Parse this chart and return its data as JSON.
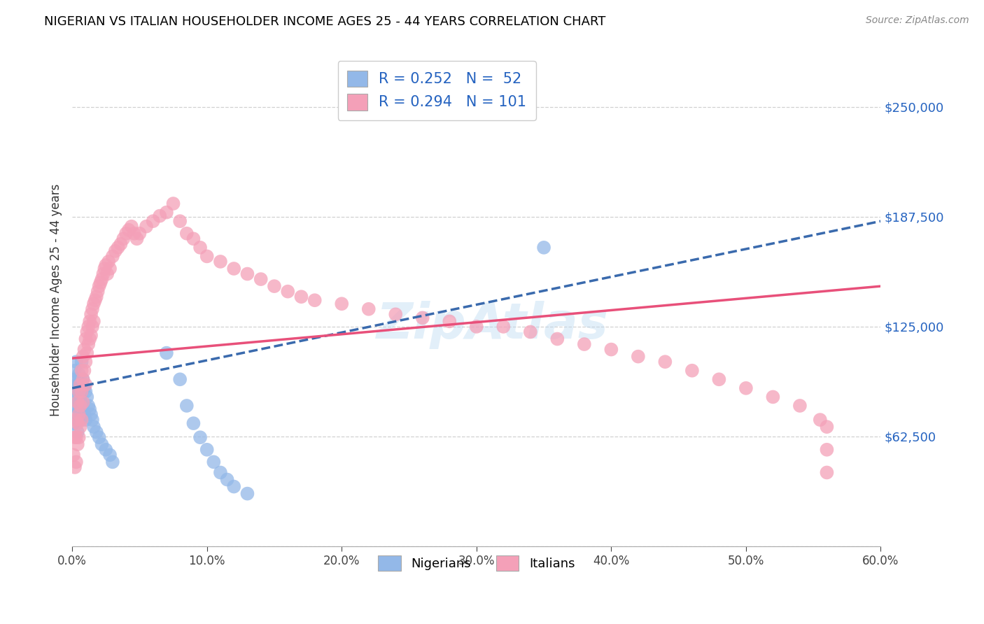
{
  "title": "NIGERIAN VS ITALIAN HOUSEHOLDER INCOME AGES 25 - 44 YEARS CORRELATION CHART",
  "source": "Source: ZipAtlas.com",
  "ylabel": "Householder Income Ages 25 - 44 years",
  "xlim": [
    0.0,
    0.6
  ],
  "ylim": [
    0,
    280000
  ],
  "yticks": [
    0,
    62500,
    125000,
    187500,
    250000
  ],
  "ytick_labels": [
    "",
    "$62,500",
    "$125,000",
    "$187,500",
    "$250,000"
  ],
  "xtick_labels": [
    "0.0%",
    "10.0%",
    "20.0%",
    "30.0%",
    "40.0%",
    "50.0%",
    "60.0%"
  ],
  "xticks": [
    0.0,
    0.1,
    0.2,
    0.3,
    0.4,
    0.5,
    0.6
  ],
  "nigerian_color": "#93b8e8",
  "italian_color": "#f4a0b8",
  "nigerian_R": 0.252,
  "nigerian_N": 52,
  "italian_R": 0.294,
  "italian_N": 101,
  "nigerian_line_color": "#3a6aad",
  "italian_line_color": "#e8507a",
  "nigerian_scatter_x": [
    0.001,
    0.001,
    0.001,
    0.002,
    0.002,
    0.002,
    0.003,
    0.003,
    0.003,
    0.003,
    0.004,
    0.004,
    0.004,
    0.004,
    0.005,
    0.005,
    0.005,
    0.006,
    0.006,
    0.006,
    0.007,
    0.007,
    0.008,
    0.008,
    0.009,
    0.009,
    0.01,
    0.01,
    0.011,
    0.012,
    0.013,
    0.014,
    0.015,
    0.016,
    0.018,
    0.02,
    0.022,
    0.025,
    0.028,
    0.03,
    0.07,
    0.08,
    0.085,
    0.09,
    0.095,
    0.1,
    0.105,
    0.11,
    0.115,
    0.12,
    0.13,
    0.35
  ],
  "nigerian_scatter_y": [
    90000,
    80000,
    70000,
    100000,
    95000,
    85000,
    105000,
    95000,
    88000,
    75000,
    92000,
    82000,
    72000,
    65000,
    98000,
    88000,
    78000,
    95000,
    85000,
    72000,
    105000,
    88000,
    95000,
    80000,
    90000,
    75000,
    88000,
    72000,
    85000,
    80000,
    78000,
    75000,
    72000,
    68000,
    65000,
    62000,
    58000,
    55000,
    52000,
    48000,
    110000,
    95000,
    80000,
    70000,
    62000,
    55000,
    48000,
    42000,
    38000,
    34000,
    30000,
    170000
  ],
  "italian_scatter_x": [
    0.001,
    0.002,
    0.002,
    0.003,
    0.003,
    0.003,
    0.004,
    0.004,
    0.004,
    0.005,
    0.005,
    0.005,
    0.006,
    0.006,
    0.006,
    0.007,
    0.007,
    0.007,
    0.008,
    0.008,
    0.008,
    0.009,
    0.009,
    0.01,
    0.01,
    0.01,
    0.011,
    0.011,
    0.012,
    0.012,
    0.013,
    0.013,
    0.014,
    0.014,
    0.015,
    0.015,
    0.016,
    0.016,
    0.017,
    0.018,
    0.019,
    0.02,
    0.021,
    0.022,
    0.023,
    0.024,
    0.025,
    0.026,
    0.027,
    0.028,
    0.03,
    0.032,
    0.034,
    0.036,
    0.038,
    0.04,
    0.042,
    0.044,
    0.046,
    0.048,
    0.05,
    0.055,
    0.06,
    0.065,
    0.07,
    0.075,
    0.08,
    0.085,
    0.09,
    0.095,
    0.1,
    0.11,
    0.12,
    0.13,
    0.14,
    0.15,
    0.16,
    0.17,
    0.18,
    0.2,
    0.22,
    0.24,
    0.26,
    0.28,
    0.3,
    0.32,
    0.34,
    0.36,
    0.38,
    0.4,
    0.42,
    0.44,
    0.46,
    0.48,
    0.5,
    0.52,
    0.54,
    0.555,
    0.56,
    0.56,
    0.56
  ],
  "italian_scatter_y": [
    52000,
    62000,
    45000,
    72000,
    62000,
    48000,
    82000,
    70000,
    58000,
    88000,
    75000,
    62000,
    92000,
    80000,
    68000,
    100000,
    88000,
    72000,
    108000,
    95000,
    82000,
    112000,
    100000,
    118000,
    105000,
    92000,
    122000,
    110000,
    125000,
    115000,
    128000,
    118000,
    132000,
    120000,
    135000,
    125000,
    138000,
    128000,
    140000,
    142000,
    145000,
    148000,
    150000,
    152000,
    155000,
    158000,
    160000,
    155000,
    162000,
    158000,
    165000,
    168000,
    170000,
    172000,
    175000,
    178000,
    180000,
    182000,
    178000,
    175000,
    178000,
    182000,
    185000,
    188000,
    190000,
    195000,
    185000,
    178000,
    175000,
    170000,
    165000,
    162000,
    158000,
    155000,
    152000,
    148000,
    145000,
    142000,
    140000,
    138000,
    135000,
    132000,
    130000,
    128000,
    125000,
    125000,
    122000,
    118000,
    115000,
    112000,
    108000,
    105000,
    100000,
    95000,
    90000,
    85000,
    80000,
    72000,
    68000,
    55000,
    42000
  ]
}
